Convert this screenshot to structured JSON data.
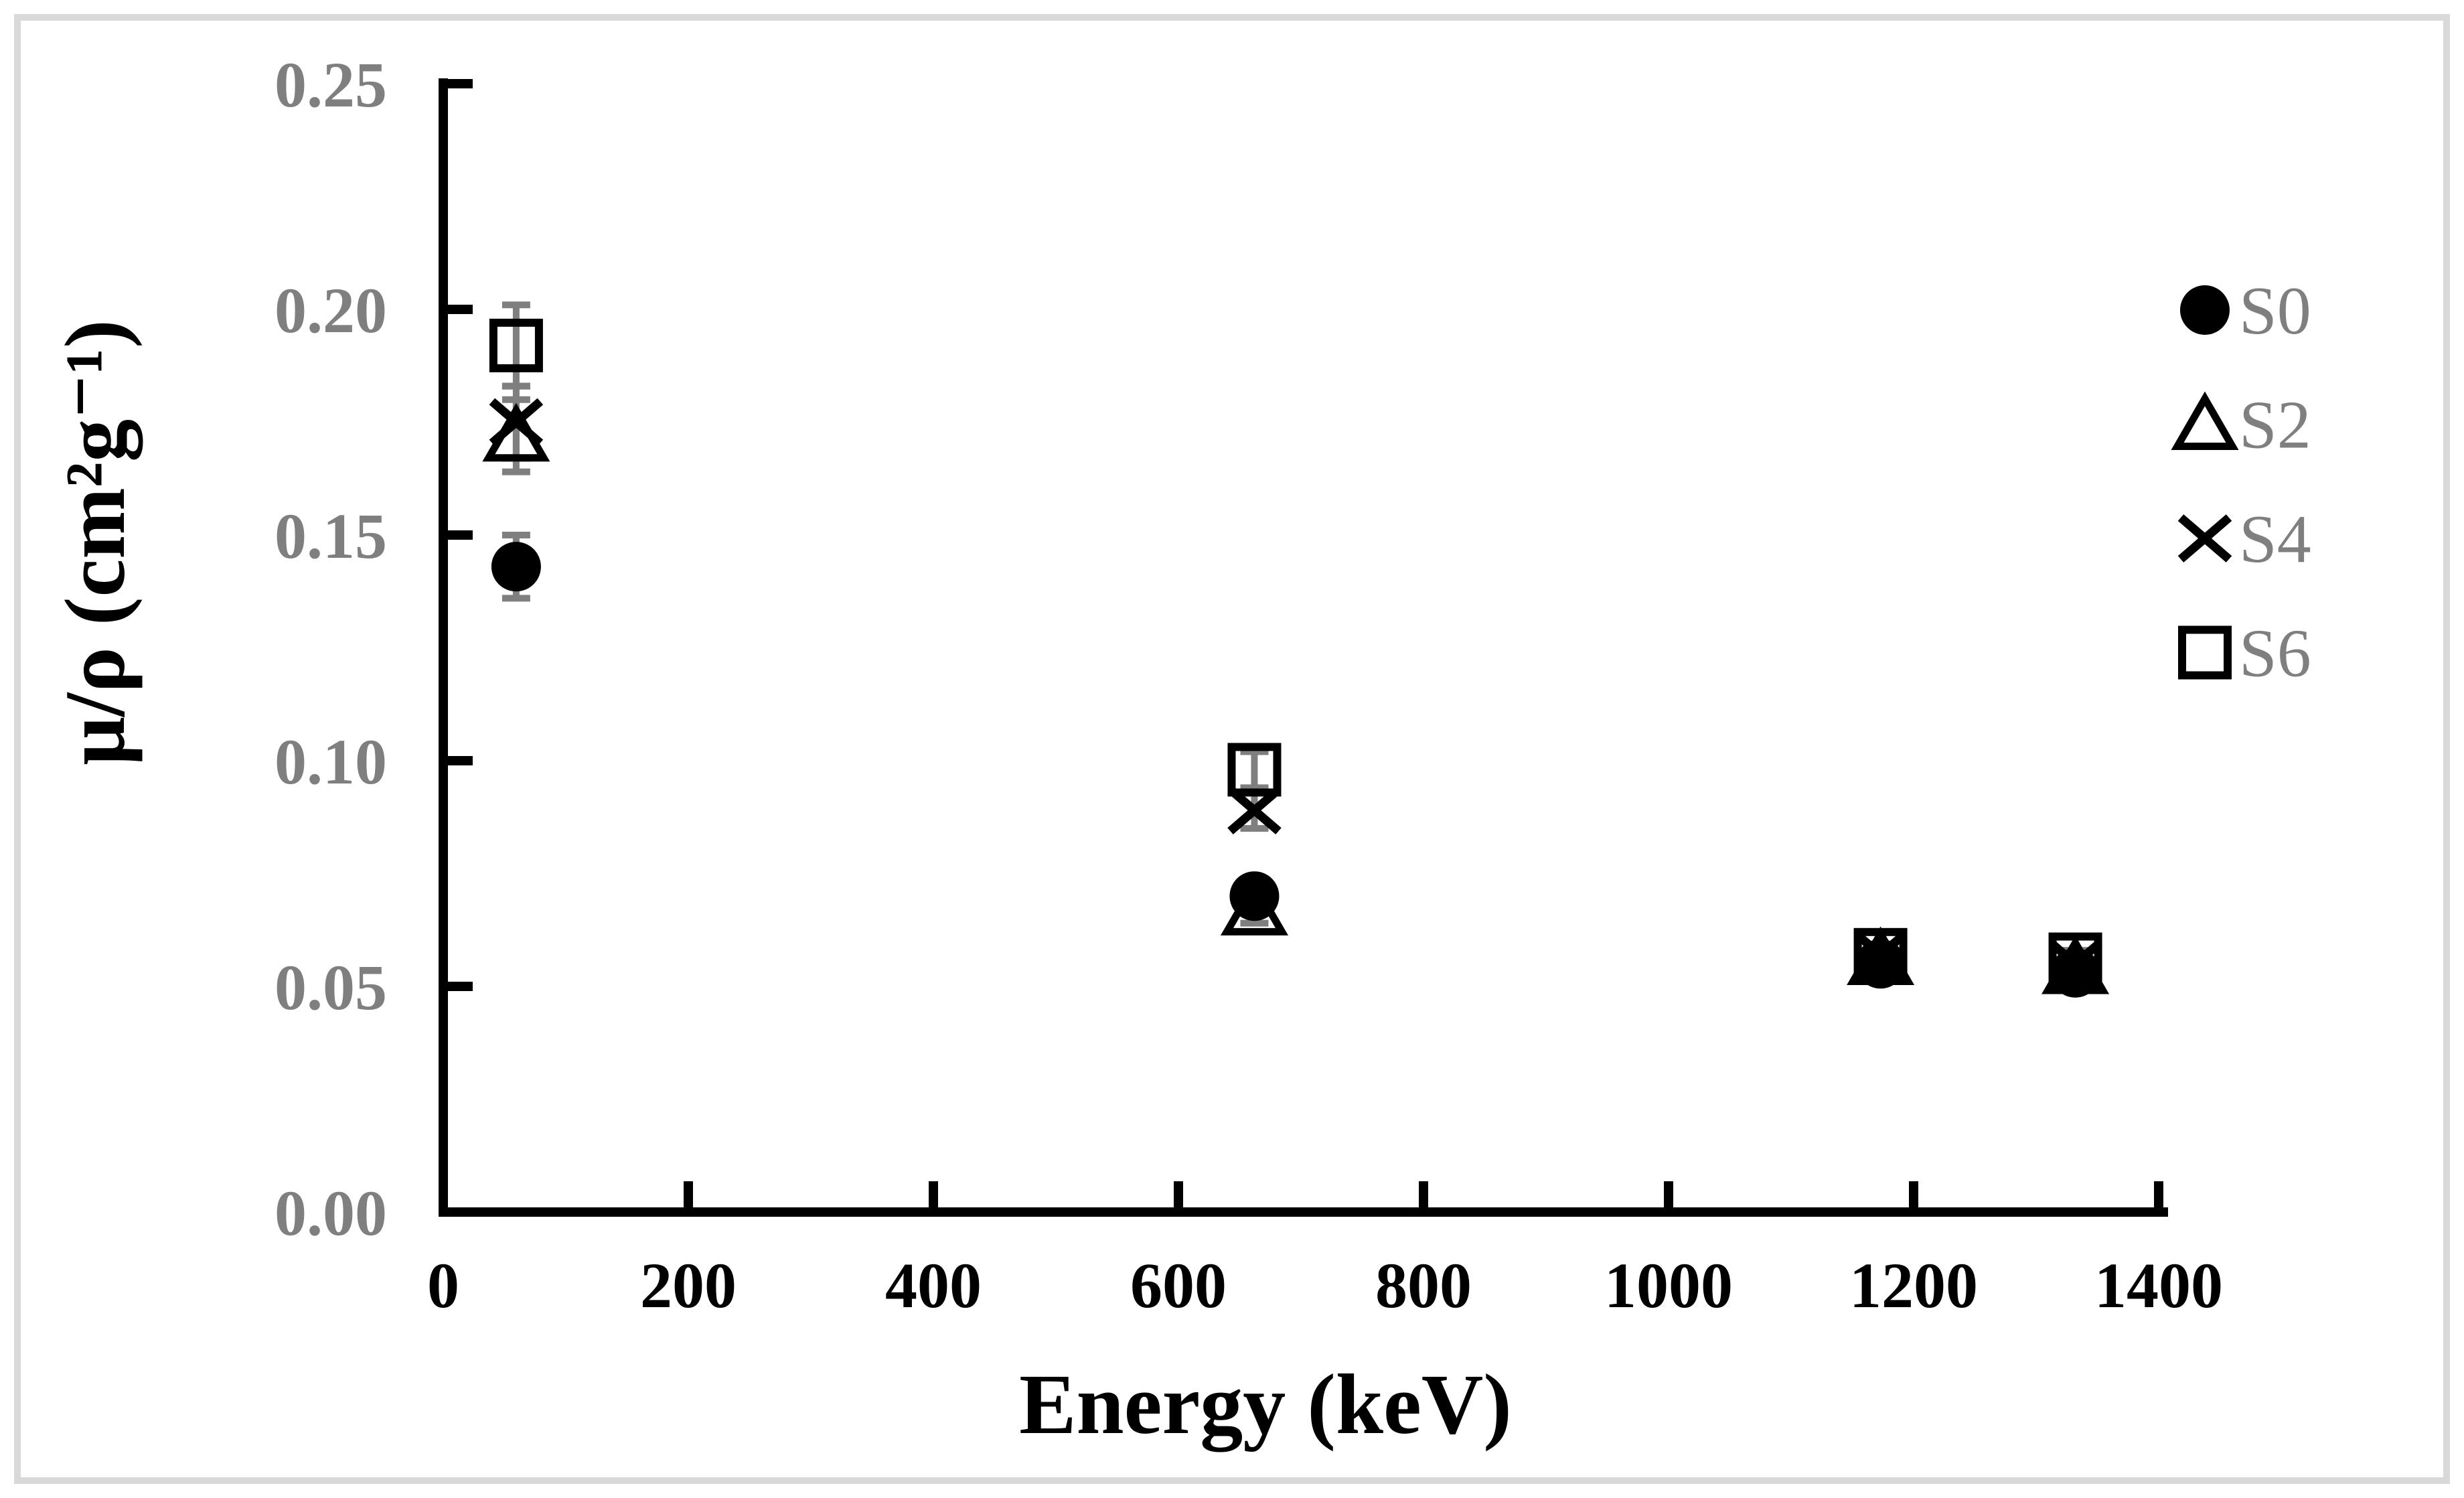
{
  "figure": {
    "background_color": "#ffffff",
    "border_color": "#d9d9d9"
  },
  "chart_data": {
    "type": "scatter",
    "title": "",
    "xlabel": "Energy (keV)",
    "ylabel": "μ/ρ (cm²g⁻¹)",
    "xlim": [
      0,
      1400
    ],
    "ylim": [
      0.0,
      0.25
    ],
    "grid": false,
    "legend_position": "right",
    "x_ticks": [
      0,
      200,
      400,
      600,
      800,
      1000,
      1200,
      1400
    ],
    "x_tick_labels": [
      "0",
      "200",
      "400",
      "600",
      "800",
      "1000",
      "1200",
      "1400"
    ],
    "y_ticks": [
      0.0,
      0.05,
      0.1,
      0.15,
      0.2,
      0.25
    ],
    "y_tick_labels": [
      "0.00",
      "0.05",
      "0.10",
      "0.15",
      "0.20",
      "0.25"
    ],
    "x": [
      59.5,
      662,
      1173,
      1332
    ],
    "series": [
      {
        "name": "S0",
        "marker": "filled-circle",
        "values": [
          0.143,
          0.07,
          0.055,
          0.053
        ],
        "errors": [
          0.007,
          0.003,
          0.002,
          0.002
        ]
      },
      {
        "name": "S2",
        "marker": "open-triangle",
        "values": [
          0.172,
          0.067,
          0.056,
          0.054
        ],
        "errors": [
          0.008,
          0.003,
          0.002,
          0.002
        ]
      },
      {
        "name": "S4",
        "marker": "x-cross",
        "values": [
          0.175,
          0.089,
          0.057,
          0.055
        ],
        "errors": [
          0.008,
          0.004,
          0.002,
          0.002
        ]
      },
      {
        "name": "S6",
        "marker": "open-square",
        "values": [
          0.192,
          0.098,
          0.057,
          0.056
        ],
        "errors": [
          0.009,
          0.004,
          0.002,
          0.002
        ]
      }
    ],
    "colors": {
      "marker": "#000000",
      "error_bar": "#7f7f7f",
      "axis": "#000000",
      "x_tick_label": "#000000",
      "y_tick_label": "#7f7f7f",
      "legend_text": "#7f7f7f"
    }
  }
}
